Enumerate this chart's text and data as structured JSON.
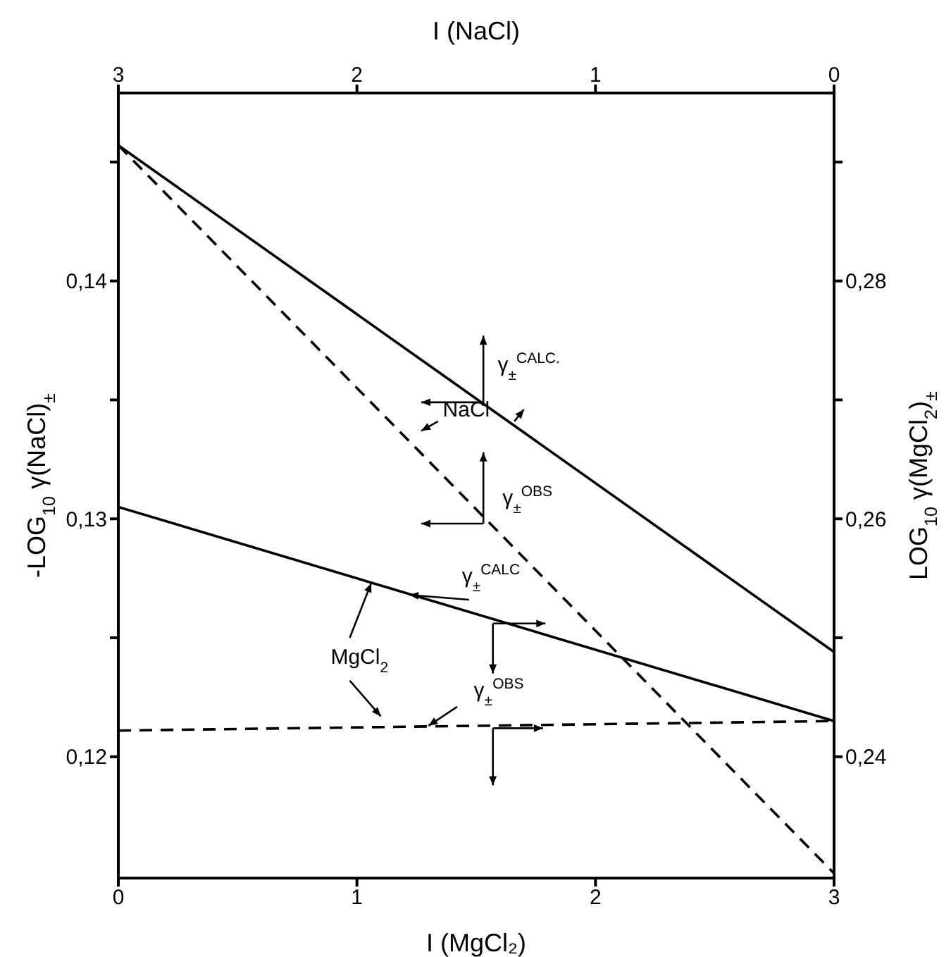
{
  "chart_data": {
    "type": "line",
    "xlabel": "I (MgCl₂)",
    "x2label": "I (NaCl)",
    "ylabel": "-LOG$_{10}$ γ(NaCl)$_{±}$",
    "y2label": "LOG$_{10}$ γ(MgCl$_{2}$)$_{±}$",
    "xlim": [
      0,
      3
    ],
    "xticks": [
      0,
      1,
      2,
      3
    ],
    "x2lim": [
      3,
      0
    ],
    "x2ticks": [
      3,
      2,
      1,
      0
    ],
    "ylim": [
      0.1149,
      0.1479
    ],
    "yticks": [
      {
        "value": 0.12,
        "label": "0,12"
      },
      {
        "value": 0.125,
        "label": null
      },
      {
        "value": 0.13,
        "label": "0,13"
      },
      {
        "value": 0.135,
        "label": null
      },
      {
        "value": 0.14,
        "label": "0,14"
      },
      {
        "value": 0.145,
        "label": null
      }
    ],
    "y2lim": [
      0.2298,
      0.2958
    ],
    "y2ticks": [
      {
        "value": 0.24,
        "label": "0,24"
      },
      {
        "value": 0.25,
        "label": null
      },
      {
        "value": 0.26,
        "label": "0,26"
      },
      {
        "value": 0.27,
        "label": null
      },
      {
        "value": 0.28,
        "label": "0,28"
      },
      {
        "value": 0.29,
        "label": null
      }
    ],
    "x": [
      0,
      3
    ],
    "series": [
      {
        "color": "#000000",
        "values": [
          0.1457,
          0.1244
        ],
        "line_style": "solid"
      },
      {
        "color": "#000000",
        "values": [
          0.1457,
          0.1151
        ],
        "line_style": "dashed"
      },
      {
        "color": "#000000",
        "values": [
          0.261,
          0.243
        ],
        "line_style": "solid",
        "axis": "y2"
      },
      {
        "color": "#000000",
        "values": [
          0.2422,
          0.243
        ],
        "line_style": "dashed",
        "axis": "y2"
      }
    ],
    "annotations": [
      "γ$_{±}$$^{CALC.}$",
      "NaCl",
      "γ$_{±}$$^{OBS}$",
      {
        "text": "γ$_{±}$$^{CALC}$",
        "x": 1.22,
        "y": 0.1268
      },
      "MgCl$_{2}$",
      "γ$_{±}$$^{OBS}$"
    ],
    "marker": "none"
  }
}
